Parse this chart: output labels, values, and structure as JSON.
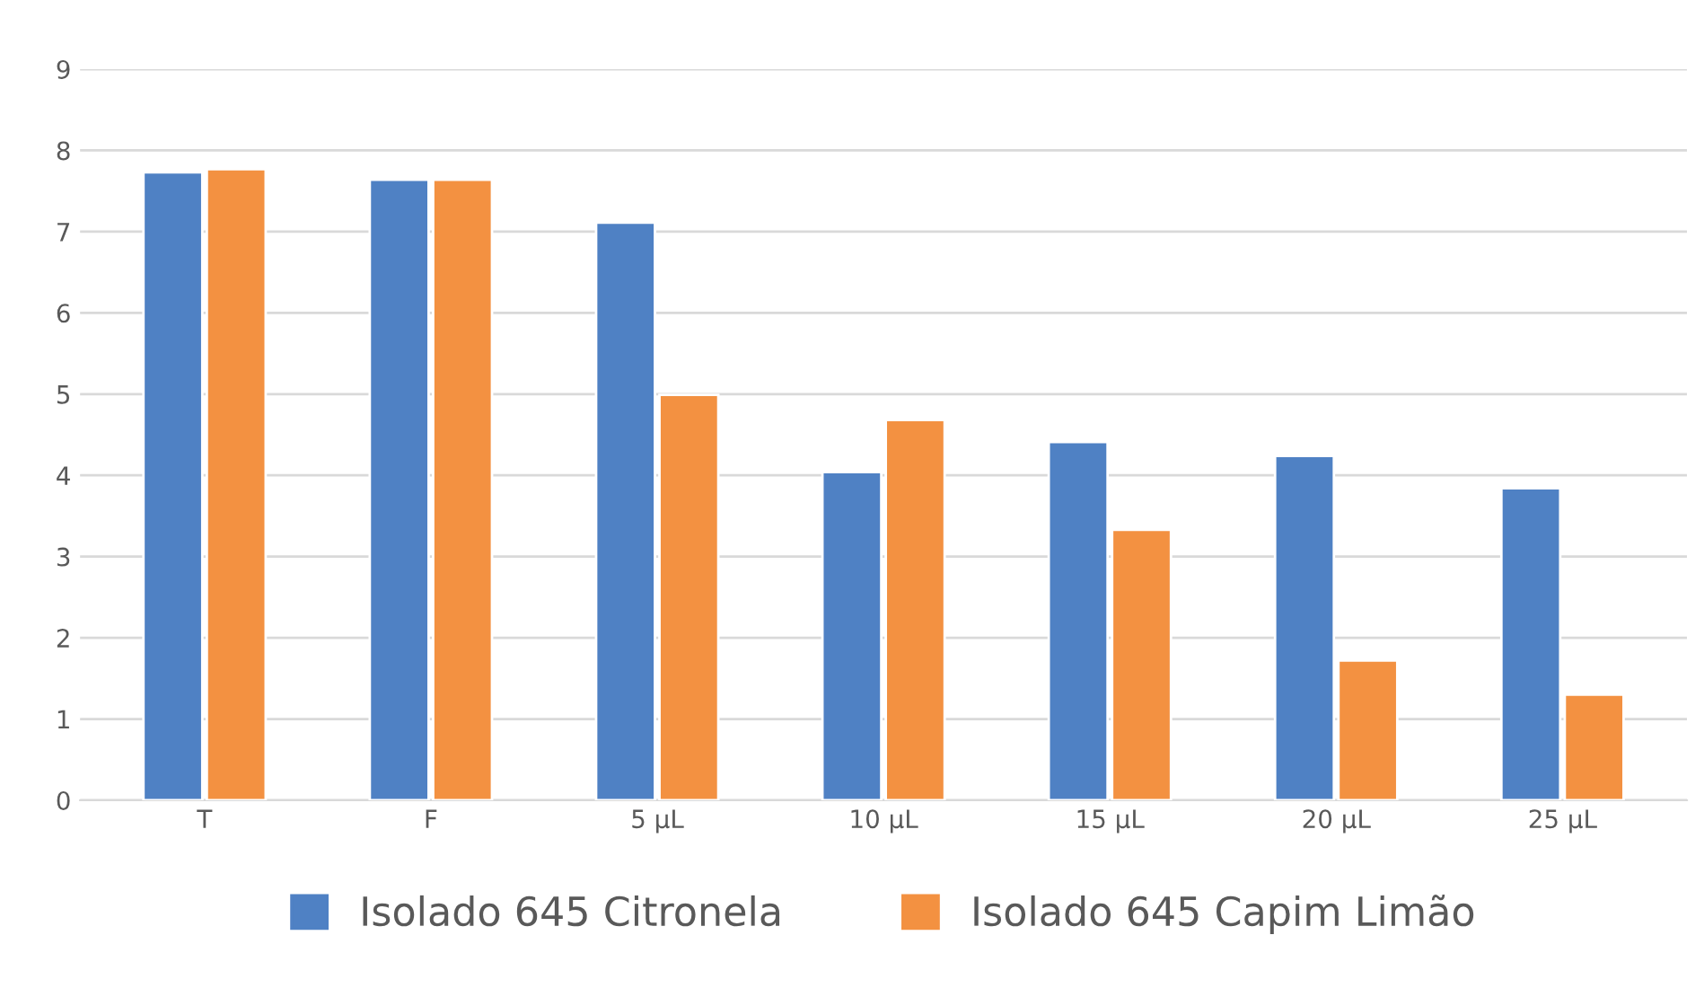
{
  "chart_data": {
    "type": "bar",
    "categories": [
      "T",
      "F",
      "5 µL",
      "10 µL",
      "15 µL",
      "20 µL",
      "25 µL"
    ],
    "series": [
      {
        "name": "Isolado 645 Citronela",
        "color": "#4f81c4",
        "values": [
          7.73,
          7.64,
          7.11,
          4.04,
          4.41,
          4.24,
          3.84
        ]
      },
      {
        "name": "Isolado 645 Capim Limão",
        "color": "#f39141",
        "values": [
          7.77,
          7.64,
          4.99,
          4.68,
          3.33,
          1.72,
          1.3
        ]
      }
    ],
    "ylim": [
      0,
      9
    ],
    "yticks": [
      0,
      1,
      2,
      3,
      4,
      5,
      6,
      7,
      8,
      9
    ],
    "grid": "y",
    "legend": "bottom"
  }
}
